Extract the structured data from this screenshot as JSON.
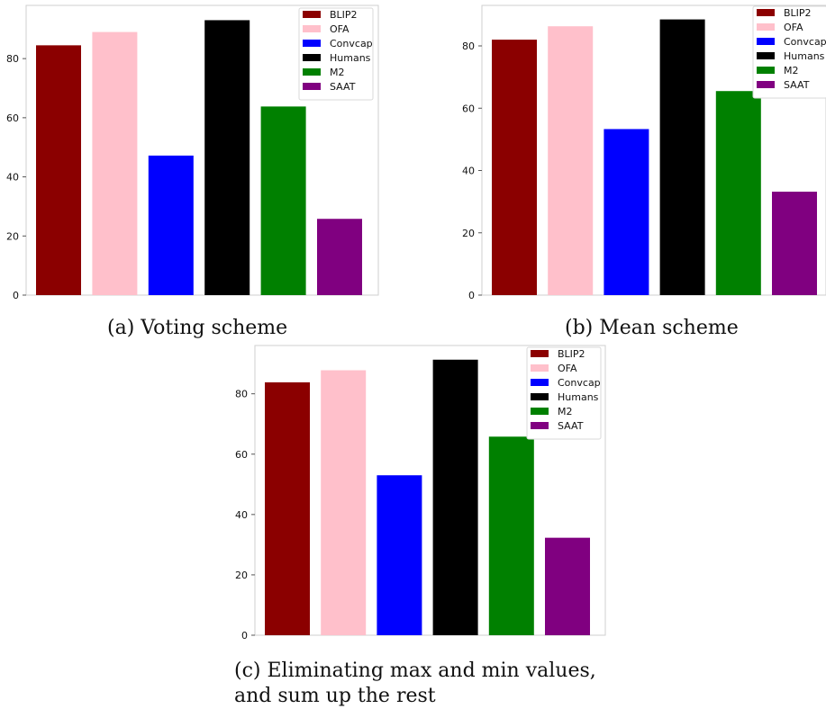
{
  "colors": {
    "BLIP2": "#8b0000",
    "OFA": "#ffc0cb",
    "Convcap": "#0000ff",
    "Humans": "#000000",
    "M2": "#008000",
    "SAAT": "#800080"
  },
  "chart_data": [
    {
      "type": "bar",
      "caption": "(a) Voting scheme",
      "categories": [
        "BLIP2",
        "OFA",
        "Convcap",
        "Humans",
        "M2",
        "SAAT"
      ],
      "values": [
        84.5,
        89,
        47.2,
        93,
        63.8,
        25.8
      ],
      "ylim": [
        0,
        98
      ],
      "yticks": [
        0,
        20,
        40,
        60,
        80
      ],
      "legend": "top-right",
      "grid": false
    },
    {
      "type": "bar",
      "caption": "(b) Mean scheme",
      "categories": [
        "BLIP2",
        "OFA",
        "Convcap",
        "Humans",
        "M2",
        "SAAT"
      ],
      "values": [
        82,
        86.3,
        53.3,
        88.5,
        65.5,
        33.2
      ],
      "ylim": [
        0,
        93
      ],
      "yticks": [
        0,
        20,
        40,
        60,
        80
      ],
      "legend": "top-right",
      "grid": false
    },
    {
      "type": "bar",
      "caption_lines": [
        "(c) Eliminating max and min values,",
        "and sum up the rest"
      ],
      "categories": [
        "BLIP2",
        "OFA",
        "Convcap",
        "Humans",
        "M2",
        "SAAT"
      ],
      "values": [
        83.8,
        87.8,
        53,
        91.3,
        65.8,
        32.3
      ],
      "ylim": [
        0,
        96
      ],
      "yticks": [
        0,
        20,
        40,
        60,
        80
      ],
      "legend": "top-right",
      "grid": false
    }
  ]
}
